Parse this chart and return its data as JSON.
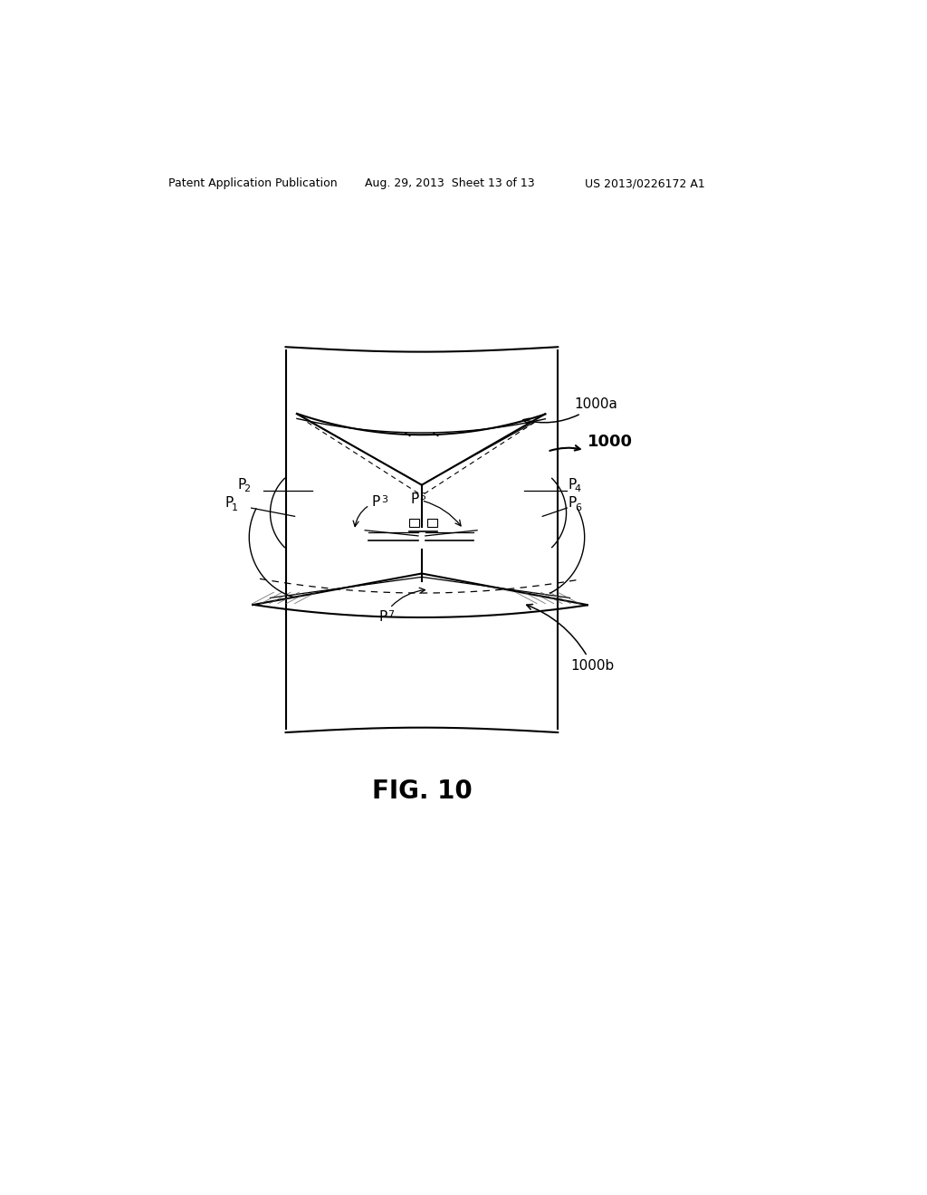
{
  "bg_color": "#ffffff",
  "header_left": "Patent Application Publication",
  "header_center": "Aug. 29, 2013  Sheet 13 of 13",
  "header_right": "US 2013/0226172 A1",
  "fig_label": "FIG. 10",
  "label_1000": "1000",
  "label_1000a": "1000a",
  "label_1000b": "1000b"
}
